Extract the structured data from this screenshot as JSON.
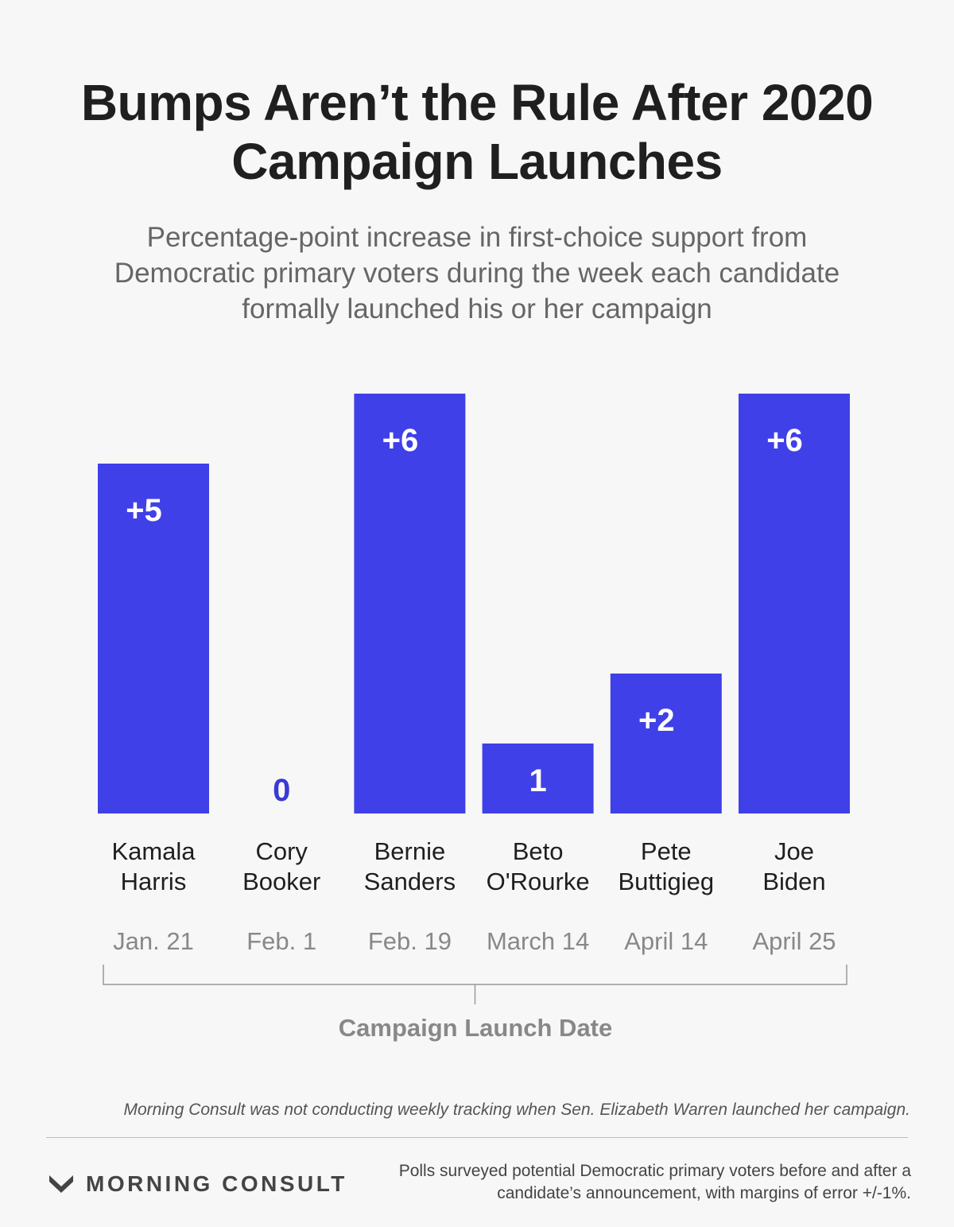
{
  "title": "Bumps Aren’t the Rule After 2020 Campaign Launches",
  "subtitle": "Percentage-point increase in first-choice support from Democratic primary voters during the week each candidate formally launched his or her campaign",
  "colors": {
    "bar": "#4040e8",
    "label_on_bar": "#ffffff",
    "label_off_bar": "#3a3ad6",
    "background": "#f7f7f7"
  },
  "chart_data": {
    "type": "bar",
    "categories": [
      {
        "name": [
          "Kamala",
          "Harris"
        ],
        "date": "Jan. 21"
      },
      {
        "name": [
          "Cory",
          "Booker"
        ],
        "date": "Feb. 1"
      },
      {
        "name": [
          "Bernie",
          "Sanders"
        ],
        "date": "Feb. 19"
      },
      {
        "name": [
          "Beto",
          "O'Rourke"
        ],
        "date": "March 14"
      },
      {
        "name": [
          "Pete",
          "Buttigieg"
        ],
        "date": "April 14"
      },
      {
        "name": [
          "Joe",
          "Biden"
        ],
        "date": "April 25"
      }
    ],
    "values": [
      5,
      0,
      6,
      1,
      2,
      6
    ],
    "data_labels": [
      "+5",
      "0",
      "+6",
      "1",
      "+2",
      "+6"
    ],
    "xlabel": "Campaign Launch Date",
    "ylim": [
      0,
      6
    ],
    "grid": false,
    "legend": "none"
  },
  "note": "Morning Consult was not conducting weekly tracking when Sen. Elizabeth Warren launched her campaign.",
  "footer": {
    "brand": "MORNING CONSULT",
    "brand_icon": "morning-consult-logo-icon",
    "source": "Polls surveyed potential Democratic primary voters before and after a candidate’s announcement, with margins of error +/-1%."
  }
}
